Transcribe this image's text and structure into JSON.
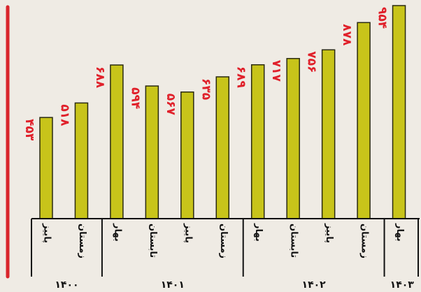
{
  "chart_data": {
    "type": "bar",
    "categories": [
      "پاییز",
      "زمستان",
      "بهار",
      "تابستان",
      "پاییز",
      "زمستان",
      "بهار",
      "تابستان",
      "پاییز",
      "زمستان",
      "بهار"
    ],
    "groups": [
      {
        "label": "۱۴۰۰",
        "count": 2
      },
      {
        "label": "۱۴۰۱",
        "count": 4
      },
      {
        "label": "۱۴۰۲",
        "count": 4
      },
      {
        "label": "۱۴۰۳",
        "count": 1
      }
    ],
    "values": [
      453,
      518,
      688,
      594,
      567,
      635,
      689,
      717,
      756,
      878,
      954
    ],
    "value_labels": [
      "۴۵۳",
      "۵۱۸",
      "۶۸۸",
      "۵۹۴",
      "۵۶۷",
      "۶۳۵",
      "۶۸۹",
      "۷۱۷",
      "۷۵۶",
      "۸۷۸",
      "۹۵۴"
    ],
    "color": "#c8c41a",
    "label_color": "#e0202a"
  }
}
